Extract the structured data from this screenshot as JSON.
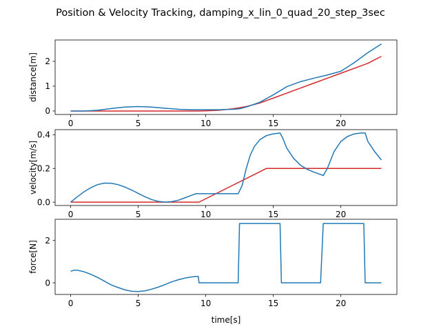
{
  "title": "Position & Velocity Tracking, damping_x_lin_0_quad_20_step_3sec",
  "colors": {
    "reference": "#d62728",
    "actual": "#1f77b4"
  },
  "chart_data": [
    {
      "type": "line",
      "ylabel": "distance[m]",
      "xlabel": "",
      "xlim": [
        -1.15,
        24.15
      ],
      "ylim": [
        -0.14,
        2.86
      ],
      "xticks": [
        0,
        5,
        10,
        15,
        20
      ],
      "yticks": [
        0,
        1,
        2
      ],
      "grid": false,
      "series": [
        {
          "color": "reference",
          "x": [
            0,
            1,
            2,
            3,
            4,
            5,
            6,
            7,
            8,
            9,
            9.5,
            10,
            11,
            12,
            12.5,
            13,
            14,
            14.5,
            15,
            16,
            17,
            18,
            19,
            20,
            21,
            22,
            23
          ],
          "y": [
            0,
            0,
            0,
            0,
            0,
            0,
            0,
            0,
            0,
            0,
            0,
            0.005,
            0.03,
            0.09,
            0.13,
            0.18,
            0.32,
            0.42,
            0.52,
            0.72,
            0.92,
            1.12,
            1.32,
            1.52,
            1.72,
            1.92,
            2.2
          ]
        },
        {
          "color": "actual",
          "x": [
            0,
            1,
            2,
            3,
            4,
            5,
            6,
            7,
            8,
            9,
            10,
            11,
            12,
            12.5,
            13,
            14,
            15,
            16,
            17,
            18,
            19,
            20,
            21,
            22,
            23
          ],
          "y": [
            0,
            0,
            0.03,
            0.1,
            0.16,
            0.18,
            0.16,
            0.11,
            0.07,
            0.05,
            0.05,
            0.05,
            0.07,
            0.09,
            0.16,
            0.35,
            0.65,
            0.98,
            1.18,
            1.32,
            1.45,
            1.6,
            1.95,
            2.35,
            2.7
          ]
        }
      ]
    },
    {
      "type": "line",
      "ylabel": "velocity[m/s]",
      "xlabel": "",
      "xlim": [
        -1.15,
        24.15
      ],
      "ylim": [
        -0.02,
        0.43
      ],
      "xticks": [
        0,
        5,
        10,
        15,
        20
      ],
      "yticks": [
        0.0,
        0.2,
        0.4
      ],
      "ytick_labels": [
        "0.0",
        "0.2",
        "0.4"
      ],
      "grid": false,
      "series": [
        {
          "color": "reference",
          "x": [
            0,
            9.5,
            14.5,
            23
          ],
          "y": [
            0,
            0,
            0.2,
            0.2
          ]
        },
        {
          "color": "actual",
          "x": [
            0,
            0.5,
            1,
            1.5,
            2,
            2.5,
            3,
            3.5,
            4,
            4.5,
            5,
            5.5,
            6,
            6.5,
            7,
            7.5,
            8,
            8.5,
            9,
            9.3,
            9.5,
            10,
            11,
            12,
            12.4,
            12.7,
            13,
            13.3,
            13.6,
            14,
            14.5,
            15,
            15.5,
            15.7,
            16,
            16.5,
            17,
            17.5,
            18,
            18.7,
            19,
            19.5,
            20,
            20.5,
            21,
            21.5,
            21.8,
            22,
            22.5,
            23
          ],
          "y": [
            0,
            0.032,
            0.062,
            0.086,
            0.104,
            0.113,
            0.112,
            0.104,
            0.09,
            0.072,
            0.052,
            0.032,
            0.015,
            0.004,
            0,
            0.003,
            0.012,
            0.027,
            0.042,
            0.05,
            0.05,
            0.05,
            0.05,
            0.05,
            0.05,
            0.1,
            0.2,
            0.28,
            0.33,
            0.37,
            0.395,
            0.405,
            0.41,
            0.38,
            0.32,
            0.26,
            0.22,
            0.195,
            0.178,
            0.158,
            0.2,
            0.3,
            0.36,
            0.39,
            0.405,
            0.41,
            0.41,
            0.36,
            0.3,
            0.25
          ]
        }
      ]
    },
    {
      "type": "line",
      "ylabel": "force[N]",
      "xlabel": "time[s]",
      "xlim": [
        -1.15,
        24.15
      ],
      "ylim": [
        -0.55,
        3.0
      ],
      "xticks": [
        0,
        5,
        10,
        15,
        20
      ],
      "yticks": [
        0,
        2
      ],
      "grid": false,
      "series": [
        {
          "color": "actual",
          "x": [
            0,
            0.3,
            0.6,
            1,
            1.5,
            2,
            2.5,
            3,
            3.5,
            4,
            4.5,
            5,
            5.5,
            6,
            6.5,
            7,
            7.5,
            8,
            8.5,
            9,
            9.3,
            9.45,
            9.5,
            10,
            11,
            12,
            12.4,
            12.5,
            13,
            14,
            15,
            15.5,
            15.6,
            16,
            17,
            18,
            18.5,
            18.7,
            19,
            20,
            21,
            21.7,
            21.8,
            22,
            23
          ],
          "y": [
            0.55,
            0.6,
            0.58,
            0.52,
            0.4,
            0.25,
            0.08,
            -0.1,
            -0.22,
            -0.33,
            -0.4,
            -0.41,
            -0.38,
            -0.3,
            -0.2,
            -0.08,
            0.05,
            0.15,
            0.23,
            0.28,
            0.3,
            0.3,
            0,
            0,
            0,
            0,
            0,
            2.8,
            2.8,
            2.8,
            2.8,
            2.8,
            0,
            0,
            0,
            0,
            0,
            2.8,
            2.8,
            2.8,
            2.8,
            2.8,
            0,
            0,
            0
          ]
        }
      ]
    }
  ]
}
